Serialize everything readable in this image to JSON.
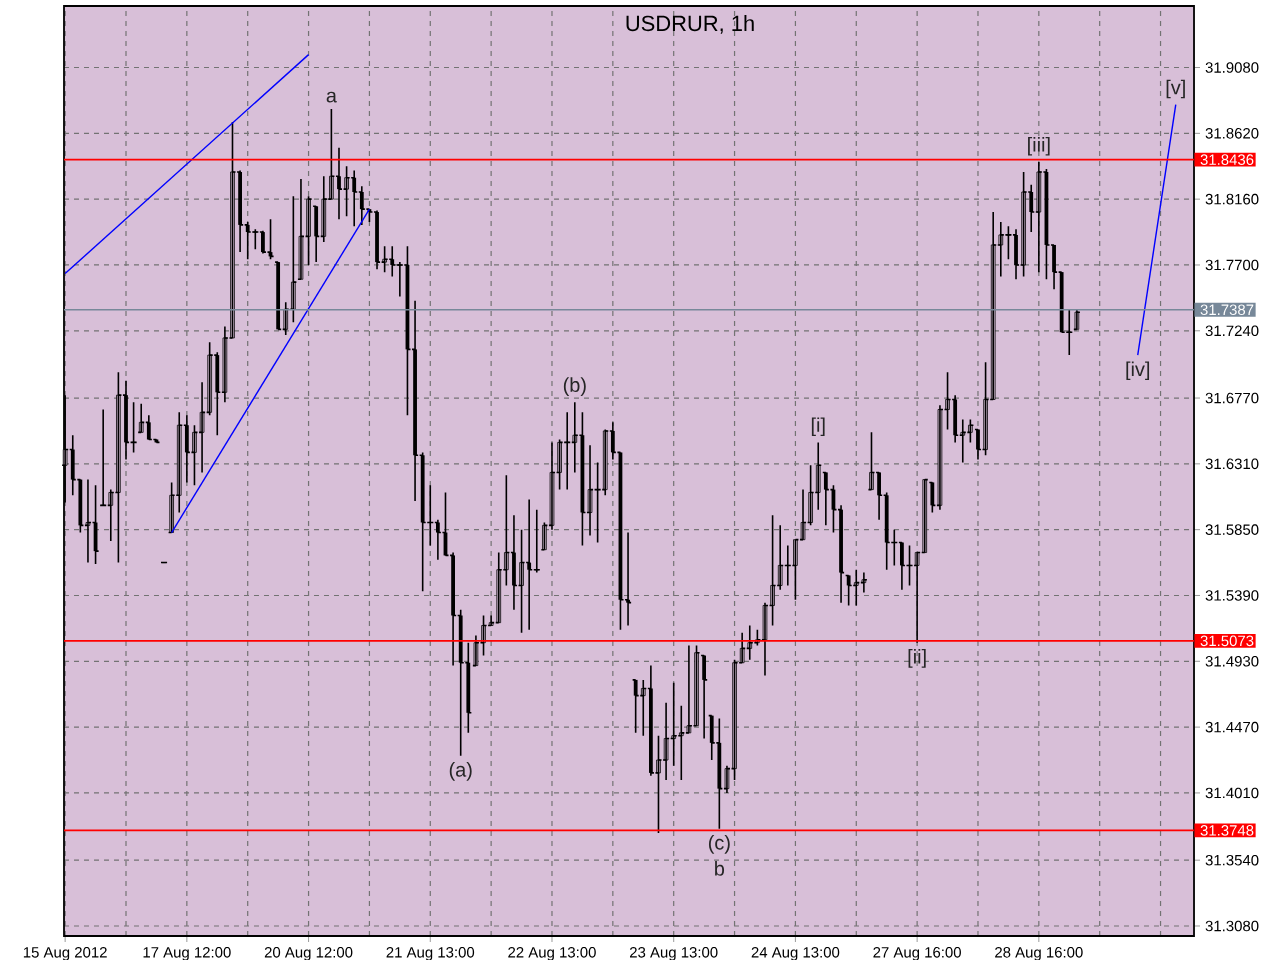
{
  "chart_data": {
    "type": "candlestick",
    "title": "USDRUR, 1h",
    "color": "#000000",
    "grid": true,
    "categories": [
      "15 Aug 2012",
      null,
      null,
      null,
      null,
      null,
      null,
      null,
      null,
      null,
      null,
      null,
      null,
      null,
      null,
      null,
      "17 Aug 12:00",
      null,
      null,
      null,
      null,
      null,
      null,
      null,
      null,
      null,
      null,
      null,
      null,
      null,
      null,
      null,
      "20 Aug 12:00",
      null,
      null,
      null,
      null,
      null,
      null,
      null,
      null,
      null,
      null,
      null,
      null,
      null,
      null,
      null,
      "21 Aug 13:00",
      null,
      null,
      null,
      null,
      null,
      null,
      null,
      null,
      null,
      null,
      null,
      null,
      null,
      null,
      null,
      "22 Aug 13:00",
      null,
      null,
      null,
      null,
      null,
      null,
      null,
      null,
      null,
      null,
      null,
      null,
      null,
      null,
      null,
      "23 Aug 13:00",
      null,
      null,
      null,
      null,
      null,
      null,
      null,
      null,
      null,
      null,
      null,
      null,
      null,
      null,
      null,
      "24 Aug 13:00",
      null,
      null,
      null,
      null,
      null,
      null,
      null,
      null,
      null,
      null,
      null,
      null,
      null,
      null,
      null,
      "27 Aug 16:00",
      null,
      null,
      null,
      null,
      null,
      null,
      null,
      null,
      null,
      null,
      null,
      null,
      null,
      null,
      null,
      "28 Aug 16:00",
      null,
      null,
      null,
      null,
      null,
      null,
      null,
      null,
      null,
      null,
      null,
      null,
      null,
      null,
      null,
      null,
      null,
      null,
      null,
      null
    ],
    "ohlc": [
      [
        31.63,
        31.679,
        31.604,
        31.641
      ],
      [
        31.641,
        31.651,
        31.609,
        31.62
      ],
      [
        31.62,
        31.62,
        31.583,
        31.588
      ],
      [
        31.588,
        31.62,
        31.562,
        31.59
      ],
      [
        31.59,
        31.616,
        31.561,
        31.57
      ],
      [
        31.602,
        31.669,
        31.602,
        31.602
      ],
      [
        31.602,
        31.613,
        31.577,
        31.611
      ],
      [
        31.611,
        31.695,
        31.562,
        31.679
      ],
      [
        31.679,
        31.689,
        31.634,
        31.646
      ],
      [
        31.646,
        31.674,
        31.639,
        31.646
      ],
      [
        31.653,
        31.673,
        31.653,
        31.66
      ],
      [
        31.66,
        31.665,
        31.648,
        31.648
      ],
      [
        31.648,
        31.648,
        31.646,
        31.646
      ],
      [
        31.562,
        31.562,
        31.562,
        31.562
      ],
      [
        31.583,
        31.618,
        31.583,
        31.609
      ],
      [
        31.609,
        31.667,
        31.597,
        31.658
      ],
      [
        31.658,
        31.665,
        31.618,
        31.639
      ],
      [
        31.639,
        31.658,
        31.616,
        31.653
      ],
      [
        31.653,
        31.688,
        31.625,
        31.667
      ],
      [
        31.667,
        31.716,
        31.665,
        31.707
      ],
      [
        31.707,
        31.709,
        31.651,
        31.681
      ],
      [
        31.681,
        31.727,
        31.674,
        31.719
      ],
      [
        31.719,
        31.87,
        31.719,
        31.835
      ],
      [
        31.835,
        31.836,
        31.779,
        31.798
      ],
      [
        31.798,
        31.8,
        31.774,
        31.793
      ],
      [
        31.793,
        31.795,
        31.781,
        31.793
      ],
      [
        31.793,
        31.794,
        31.778,
        31.779
      ],
      [
        31.779,
        31.802,
        31.774,
        31.776
      ],
      [
        31.772,
        31.772,
        31.725,
        31.725
      ],
      [
        31.725,
        31.744,
        31.721,
        31.739
      ],
      [
        31.739,
        31.818,
        31.73,
        31.758
      ],
      [
        31.76,
        31.83,
        31.76,
        31.79
      ],
      [
        31.79,
        31.818,
        31.77,
        31.816
      ],
      [
        31.811,
        31.811,
        31.772,
        31.79
      ],
      [
        31.79,
        31.832,
        31.786,
        31.816
      ],
      [
        31.816,
        31.879,
        31.816,
        31.832
      ],
      [
        31.832,
        31.852,
        31.802,
        31.823
      ],
      [
        31.823,
        31.839,
        31.804,
        31.831
      ],
      [
        31.831,
        31.836,
        31.797,
        31.821
      ],
      [
        31.821,
        31.825,
        31.798,
        31.809
      ],
      [
        31.809,
        31.809,
        31.8,
        31.807
      ],
      [
        31.807,
        31.808,
        31.767,
        31.772
      ],
      [
        31.772,
        31.783,
        31.765,
        31.774
      ],
      [
        31.774,
        31.783,
        31.762,
        31.77
      ],
      [
        31.77,
        31.772,
        31.748,
        31.77
      ],
      [
        31.77,
        31.783,
        31.665,
        31.711
      ],
      [
        31.711,
        31.745,
        31.605,
        31.637
      ],
      [
        31.637,
        31.639,
        31.542,
        31.59
      ],
      [
        31.59,
        31.616,
        31.574,
        31.59
      ],
      [
        31.59,
        31.592,
        31.564,
        31.583
      ],
      [
        31.583,
        31.611,
        31.567,
        31.567
      ],
      [
        31.567,
        31.569,
        31.49,
        31.525
      ],
      [
        31.525,
        31.529,
        31.427,
        31.492
      ],
      [
        31.492,
        31.506,
        31.443,
        31.457
      ],
      [
        31.49,
        31.511,
        31.49,
        31.506
      ],
      [
        31.506,
        31.525,
        31.497,
        31.518
      ],
      [
        31.518,
        31.525,
        31.518,
        31.52
      ],
      [
        31.52,
        31.569,
        31.52,
        31.557
      ],
      [
        31.557,
        31.623,
        31.546,
        31.569
      ],
      [
        31.569,
        31.595,
        31.529,
        31.546
      ],
      [
        31.546,
        31.585,
        31.513,
        31.562
      ],
      [
        31.562,
        31.606,
        31.515,
        31.557
      ],
      [
        31.557,
        31.599,
        31.555,
        31.557
      ],
      [
        31.571,
        31.59,
        31.571,
        31.588
      ],
      [
        31.588,
        31.646,
        31.585,
        31.625
      ],
      [
        31.625,
        31.648,
        31.613,
        31.646
      ],
      [
        31.646,
        31.667,
        31.613,
        31.646
      ],
      [
        31.646,
        31.674,
        31.625,
        31.651
      ],
      [
        31.651,
        31.667,
        31.574,
        31.597
      ],
      [
        31.597,
        31.644,
        31.581,
        31.613
      ],
      [
        31.613,
        31.632,
        31.576,
        31.613
      ],
      [
        31.613,
        31.655,
        31.609,
        31.654
      ],
      [
        31.654,
        31.66,
        31.634,
        31.639
      ],
      [
        31.639,
        31.639,
        31.515,
        31.536
      ],
      [
        31.536,
        31.583,
        31.518,
        31.534
      ],
      [
        31.48,
        31.48,
        31.443,
        31.469
      ],
      [
        31.469,
        31.48,
        31.441,
        31.474
      ],
      [
        31.474,
        31.49,
        31.413,
        31.415
      ],
      [
        31.415,
        31.441,
        31.373,
        31.424
      ],
      [
        31.424,
        31.464,
        31.41,
        31.439
      ],
      [
        31.439,
        31.478,
        31.42,
        31.441
      ],
      [
        31.441,
        31.462,
        31.41,
        31.443
      ],
      [
        31.443,
        31.504,
        31.443,
        31.448
      ],
      [
        31.448,
        31.504,
        31.448,
        31.499
      ],
      [
        31.497,
        31.497,
        31.439,
        31.48
      ],
      [
        31.455,
        31.455,
        31.424,
        31.436
      ],
      [
        31.436,
        31.453,
        31.376,
        31.404
      ],
      [
        31.404,
        31.42,
        31.401,
        31.418
      ],
      [
        31.418,
        31.494,
        31.41,
        31.492
      ],
      [
        31.492,
        31.513,
        31.492,
        31.502
      ],
      [
        31.502,
        31.518,
        31.494,
        31.506
      ],
      [
        31.506,
        31.515,
        31.504,
        31.508
      ],
      [
        31.508,
        31.534,
        31.483,
        31.532
      ],
      [
        31.532,
        31.595,
        31.518,
        31.546
      ],
      [
        31.546,
        31.588,
        31.543,
        31.56
      ],
      [
        31.56,
        31.574,
        31.546,
        31.56
      ],
      [
        31.56,
        31.578,
        31.536,
        31.578
      ],
      [
        31.578,
        31.613,
        31.578,
        31.59
      ],
      [
        31.59,
        31.63,
        31.588,
        31.611
      ],
      [
        31.611,
        31.646,
        31.599,
        31.63
      ],
      [
        31.625,
        31.625,
        31.588,
        31.613
      ],
      [
        31.613,
        31.616,
        31.583,
        31.599
      ],
      [
        31.599,
        31.602,
        31.534,
        31.555
      ],
      [
        31.553,
        31.553,
        31.532,
        31.546
      ],
      [
        31.546,
        31.557,
        31.532,
        31.548
      ],
      [
        31.548,
        31.555,
        31.541,
        31.55
      ],
      [
        31.613,
        31.653,
        31.613,
        31.625
      ],
      [
        31.625,
        31.625,
        31.592,
        31.609
      ],
      [
        31.609,
        31.611,
        31.557,
        31.576
      ],
      [
        31.576,
        31.585,
        31.56,
        31.576
      ],
      [
        31.576,
        31.576,
        31.543,
        31.56
      ],
      [
        31.56,
        31.574,
        31.546,
        31.56
      ],
      [
        31.56,
        31.569,
        31.506,
        31.569
      ],
      [
        31.569,
        31.62,
        31.569,
        31.62
      ],
      [
        31.618,
        31.618,
        31.597,
        31.602
      ],
      [
        31.602,
        31.672,
        31.599,
        31.669
      ],
      [
        31.669,
        31.695,
        31.655,
        31.676
      ],
      [
        31.676,
        31.679,
        31.646,
        31.651
      ],
      [
        31.651,
        31.662,
        31.632,
        31.653
      ],
      [
        31.653,
        31.662,
        31.646,
        31.658
      ],
      [
        31.655,
        31.655,
        31.634,
        31.641
      ],
      [
        31.641,
        31.702,
        31.637,
        31.676
      ],
      [
        31.676,
        31.807,
        31.676,
        31.784
      ],
      [
        31.784,
        31.8,
        31.762,
        31.791
      ],
      [
        31.791,
        31.797,
        31.774,
        31.791
      ],
      [
        31.791,
        31.795,
        31.76,
        31.77
      ],
      [
        31.77,
        31.835,
        31.762,
        31.821
      ],
      [
        31.821,
        31.826,
        31.793,
        31.807
      ],
      [
        31.807,
        31.842,
        31.765,
        31.835
      ],
      [
        31.835,
        31.837,
        31.76,
        31.784
      ],
      [
        31.784,
        31.784,
        31.753,
        31.765
      ],
      [
        31.765,
        31.765,
        31.723,
        31.723
      ],
      [
        31.723,
        31.739,
        31.707,
        31.723
      ],
      [
        31.725,
        31.739,
        31.725,
        31.737
      ],
      null,
      null,
      null,
      null,
      null,
      null,
      null,
      null,
      null,
      null,
      null,
      null,
      null,
      null,
      null
    ],
    "series": [
      {
        "type": "line",
        "color": "#0000ff",
        "values": [
          31.764,
          null,
          null,
          null,
          null,
          null,
          null,
          null,
          null,
          null,
          null,
          null,
          null,
          null,
          null,
          null,
          null,
          null,
          null,
          null,
          null,
          null,
          null,
          null,
          null,
          null,
          null,
          null,
          null,
          null,
          null,
          null,
          31.917,
          null,
          null,
          null,
          null,
          null,
          null,
          null,
          null,
          null,
          null,
          null,
          null,
          null,
          null,
          null,
          null,
          null,
          null,
          null,
          null,
          null,
          null,
          null,
          null,
          null,
          null,
          null,
          null,
          null,
          null,
          null,
          null,
          null,
          null,
          null,
          null,
          null,
          null,
          null,
          null,
          null,
          null,
          null,
          null,
          null,
          null,
          null,
          null,
          null,
          null,
          null,
          null,
          null,
          null,
          null,
          null,
          null,
          null,
          null,
          null,
          null,
          null,
          null,
          null,
          null,
          null,
          null,
          null,
          null,
          null,
          null,
          null,
          null,
          null,
          null,
          null,
          null,
          null,
          null,
          null,
          null,
          null,
          null,
          null,
          null,
          null,
          null,
          null,
          null,
          null,
          null,
          null,
          null,
          null,
          null,
          null,
          null,
          null,
          null,
          null,
          null,
          null,
          null,
          null,
          null,
          null,
          null,
          null,
          null,
          null,
          null,
          null,
          null,
          null,
          null,
          null
        ]
      },
      {
        "type": "line",
        "color": "#0000ff",
        "values": [
          null,
          null,
          null,
          null,
          null,
          null,
          null,
          null,
          null,
          null,
          null,
          null,
          null,
          null,
          31.583,
          null,
          null,
          null,
          null,
          null,
          null,
          null,
          null,
          null,
          null,
          null,
          null,
          null,
          null,
          null,
          null,
          null,
          null,
          null,
          null,
          null,
          null,
          null,
          null,
          null,
          31.809,
          null,
          null,
          null,
          null,
          null,
          null,
          null,
          null,
          null,
          null,
          null,
          null,
          null,
          null,
          null,
          null,
          null,
          null,
          null,
          null,
          null,
          null,
          null,
          null,
          null,
          null,
          null,
          null,
          null,
          null,
          null,
          null,
          null,
          null,
          null,
          null,
          null,
          null,
          null,
          null,
          null,
          null,
          null,
          null,
          null,
          null,
          null,
          null,
          null,
          null,
          null,
          null,
          null,
          null,
          null,
          null,
          null,
          null,
          null,
          null,
          null,
          null,
          null,
          null,
          null,
          null,
          null,
          null,
          null,
          null,
          null,
          null,
          null,
          null,
          null,
          null,
          null,
          null,
          null,
          null,
          null,
          null,
          null,
          null,
          null,
          null,
          null,
          null,
          null,
          null,
          null,
          null,
          null,
          null,
          null,
          null,
          null,
          null,
          null,
          null,
          null,
          null,
          null,
          null,
          null,
          null,
          null,
          null
        ]
      },
      {
        "type": "line",
        "color": "#0000ff",
        "values": [
          null,
          null,
          null,
          null,
          null,
          null,
          null,
          null,
          null,
          null,
          null,
          null,
          null,
          null,
          null,
          null,
          null,
          null,
          null,
          null,
          null,
          null,
          null,
          null,
          null,
          null,
          null,
          null,
          null,
          null,
          null,
          null,
          null,
          null,
          null,
          null,
          null,
          null,
          null,
          null,
          null,
          null,
          null,
          null,
          null,
          null,
          null,
          null,
          null,
          null,
          null,
          null,
          null,
          null,
          null,
          null,
          null,
          null,
          null,
          null,
          null,
          null,
          null,
          null,
          null,
          null,
          null,
          null,
          null,
          null,
          null,
          null,
          null,
          null,
          null,
          null,
          null,
          null,
          null,
          null,
          null,
          null,
          null,
          null,
          null,
          null,
          null,
          null,
          null,
          null,
          null,
          null,
          null,
          null,
          null,
          null,
          null,
          null,
          null,
          null,
          null,
          null,
          null,
          null,
          null,
          null,
          null,
          null,
          null,
          null,
          null,
          null,
          null,
          null,
          null,
          null,
          null,
          null,
          null,
          null,
          null,
          null,
          null,
          null,
          null,
          null,
          null,
          null,
          null,
          null,
          null,
          null,
          null,
          null,
          null,
          null,
          null,
          null,
          null,
          null,
          null,
          31.707,
          null,
          null,
          null,
          null,
          31.882,
          null,
          null
        ]
      }
    ],
    "ylim": [
      31.301,
      31.951
    ],
    "yticks": [
      {
        "value": 31.308,
        "label": "31.3080"
      },
      {
        "value": 31.354,
        "label": "31.3540"
      },
      {
        "value": 31.401,
        "label": "31.4010"
      },
      {
        "value": 31.447,
        "label": "31.4470"
      },
      {
        "value": 31.493,
        "label": "31.4930"
      },
      {
        "value": 31.539,
        "label": "31.5390"
      },
      {
        "value": 31.585,
        "label": "31.5850"
      },
      {
        "value": 31.631,
        "label": "31.6310"
      },
      {
        "value": 31.677,
        "label": "31.6770"
      },
      {
        "value": 31.724,
        "label": "31.7240"
      },
      {
        "value": 31.77,
        "label": "31.7700"
      },
      {
        "value": 31.816,
        "label": "31.8160"
      },
      {
        "value": 31.862,
        "label": "31.8620"
      },
      {
        "value": 31.908,
        "label": "31.9080"
      }
    ],
    "ref_lines": [
      {
        "axis": "y",
        "value": 31.8436,
        "label": "31.8436",
        "color": "#ff0000"
      },
      {
        "axis": "y",
        "value": 31.7387,
        "label": "31.7387",
        "color": "#778899"
      },
      {
        "axis": "y",
        "value": 31.5073,
        "label": "31.5073",
        "color": "#ff0000"
      },
      {
        "axis": "y",
        "value": 31.3748,
        "label": "31.3748",
        "color": "#ff0000"
      }
    ],
    "annotations": [
      {
        "text": "a",
        "y": 31.879
      },
      {
        "text": "(a)",
        "y": 31.427
      },
      {
        "text": "(b)",
        "y": 31.674
      },
      {
        "text": "(c)",
        "y": 31.376
      },
      {
        "text": "b",
        "y": 31.376
      },
      {
        "text": "[i]",
        "y": 31.646
      },
      {
        "text": "[ii]",
        "y": 31.506
      },
      {
        "text": "[iii]",
        "y": 31.842
      },
      {
        "text": "[iv]",
        "y": 31.707
      },
      {
        "text": "[v]",
        "y": 31.882
      }
    ]
  }
}
